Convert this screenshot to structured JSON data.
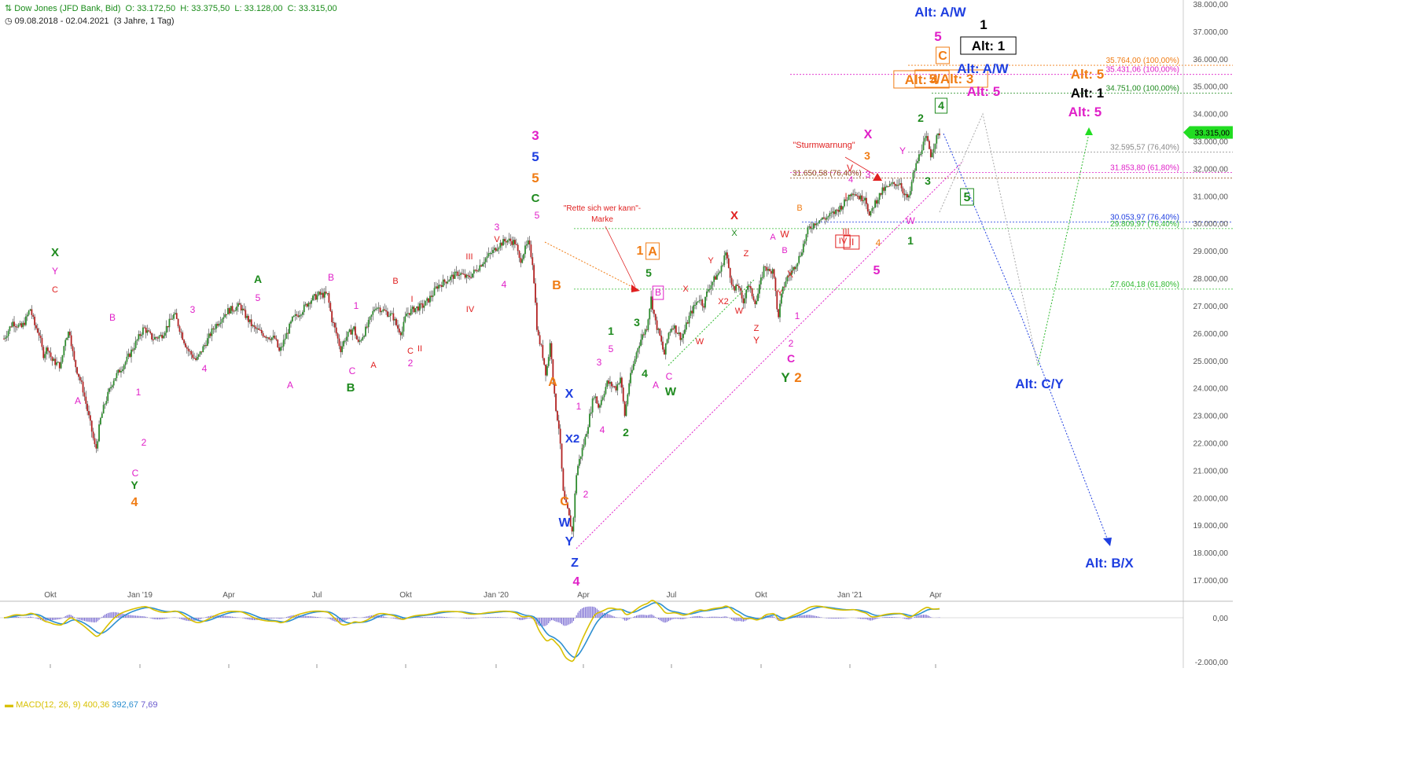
{
  "header": {
    "instrument": "Dow Jones (JFD Bank, Bid)",
    "open": "O: 33.172,50",
    "high": "H: 33.375,50",
    "low": "L: 33.128,00",
    "close": "C: 33.315,00",
    "range": "09.08.2018 - 02.04.2021",
    "period": "(3 Jahre, 1 Tag)"
  },
  "current_price": "33.315,00",
  "macd": {
    "label": "MACD(12, 26, 9)",
    "v1": "400,36",
    "v2": "392,67",
    "v3": "7,69"
  },
  "colors": {
    "up": "#2e8b2e",
    "down": "#b22222",
    "magenta": "#e020c8",
    "orange": "#f07c14",
    "green": "#1e8a1e",
    "blue": "#1f3fe0",
    "black": "#000000",
    "red": "#e02020",
    "macd_line": "#d8c000",
    "signal_line": "#2d8fd0",
    "histogram": "#6a5acd"
  },
  "chart_data": {
    "type": "candlestick",
    "x_tick_labels": [
      "Okt",
      "Jan '19",
      "Apr",
      "Jul",
      "Okt",
      "Jan '20",
      "Apr",
      "Jul",
      "Okt",
      "Jan '21",
      "Apr"
    ],
    "y_tick_labels": [
      "38.000,00",
      "37.000,00",
      "36.000,00",
      "35.000,00",
      "34.000,00",
      "33.000,00",
      "32.000,00",
      "31.000,00",
      "30.000,00",
      "29.000,00",
      "28.000,00",
      "27.000,00",
      "26.000,00",
      "25.000,00",
      "24.000,00",
      "23.000,00",
      "22.000,00",
      "21.000,00",
      "20.000,00",
      "19.000,00",
      "18.000,00",
      "17.000,00"
    ],
    "y_range": [
      16500,
      38000
    ],
    "macd_tick_labels": [
      "0,00",
      "-2.000,00"
    ],
    "price_path": [
      [
        0,
        25800
      ],
      [
        2,
        26400
      ],
      [
        4,
        26200
      ],
      [
        5,
        26500
      ],
      [
        6,
        26900
      ],
      [
        7,
        26300
      ],
      [
        8,
        26000
      ],
      [
        9,
        25200
      ],
      [
        10,
        25500
      ],
      [
        11,
        25000
      ],
      [
        13,
        24800
      ],
      [
        14,
        25800
      ],
      [
        15,
        26100
      ],
      [
        16,
        25000
      ],
      [
        17,
        24500
      ],
      [
        18,
        24000
      ],
      [
        20,
        22500
      ],
      [
        21,
        21700
      ],
      [
        22,
        22800
      ],
      [
        23,
        23400
      ],
      [
        25,
        24300
      ],
      [
        28,
        25000
      ],
      [
        32,
        26200
      ],
      [
        34,
        25800
      ],
      [
        36,
        25900
      ],
      [
        39,
        26700
      ],
      [
        41,
        25800
      ],
      [
        42,
        25400
      ],
      [
        44,
        25000
      ],
      [
        46,
        25600
      ],
      [
        48,
        26200
      ],
      [
        51,
        26800
      ],
      [
        54,
        27000
      ],
      [
        55,
        26700
      ],
      [
        57,
        26200
      ],
      [
        60,
        25900
      ],
      [
        62,
        25800
      ],
      [
        63,
        25300
      ],
      [
        64,
        25700
      ],
      [
        66,
        26500
      ],
      [
        68,
        26800
      ],
      [
        70,
        27200
      ],
      [
        72,
        27400
      ],
      [
        74,
        27400
      ],
      [
        75,
        26500
      ],
      [
        76,
        26000
      ],
      [
        77,
        25400
      ],
      [
        78,
        25800
      ],
      [
        80,
        26200
      ],
      [
        81,
        25600
      ],
      [
        83,
        26200
      ],
      [
        85,
        27000
      ],
      [
        86,
        26900
      ],
      [
        87,
        26800
      ],
      [
        89,
        26600
      ],
      [
        90,
        26200
      ],
      [
        91,
        26000
      ],
      [
        92,
        26700
      ],
      [
        94,
        26900
      ],
      [
        96,
        27000
      ],
      [
        98,
        27400
      ],
      [
        99,
        27700
      ],
      [
        101,
        27900
      ],
      [
        104,
        28200
      ],
      [
        106,
        28000
      ],
      [
        108,
        28300
      ],
      [
        110,
        28700
      ],
      [
        112,
        29000
      ],
      [
        113,
        29200
      ],
      [
        115,
        29400
      ],
      [
        117,
        29300
      ],
      [
        118,
        28600
      ],
      [
        119,
        29000
      ],
      [
        120,
        29300
      ],
      [
        121,
        28500
      ],
      [
        122,
        26000
      ],
      [
        123,
        25400
      ],
      [
        124,
        24500
      ],
      [
        125,
        25700
      ],
      [
        126,
        23500
      ],
      [
        127,
        22500
      ],
      [
        128,
        20000
      ],
      [
        129,
        19500
      ],
      [
        130,
        18700
      ],
      [
        131,
        21000
      ],
      [
        132,
        21600
      ],
      [
        133,
        22200
      ],
      [
        134,
        23000
      ],
      [
        135,
        23800
      ],
      [
        136,
        23300
      ],
      [
        138,
        24200
      ],
      [
        140,
        24000
      ],
      [
        141,
        24400
      ],
      [
        142,
        23000
      ],
      [
        143,
        24200
      ],
      [
        145,
        25500
      ],
      [
        146,
        25900
      ],
      [
        147,
        26200
      ],
      [
        148,
        27300
      ],
      [
        149,
        26400
      ],
      [
        150,
        25900
      ],
      [
        151,
        25200
      ],
      [
        152,
        26000
      ],
      [
        153,
        26300
      ],
      [
        155,
        25800
      ],
      [
        157,
        26700
      ],
      [
        159,
        27300
      ],
      [
        160,
        27000
      ],
      [
        161,
        27600
      ],
      [
        163,
        28100
      ],
      [
        164,
        28300
      ],
      [
        165,
        29000
      ],
      [
        166,
        28200
      ],
      [
        167,
        27500
      ],
      [
        168,
        27800
      ],
      [
        169,
        27000
      ],
      [
        170,
        27800
      ],
      [
        172,
        27100
      ],
      [
        174,
        28500
      ],
      [
        175,
        28200
      ],
      [
        176,
        28400
      ],
      [
        177,
        26500
      ],
      [
        178,
        27500
      ],
      [
        179,
        28000
      ],
      [
        180,
        28200
      ],
      [
        182,
        28800
      ],
      [
        184,
        29800
      ],
      [
        186,
        30100
      ],
      [
        188,
        30200
      ],
      [
        190,
        30400
      ],
      [
        192,
        30700
      ],
      [
        194,
        31200
      ],
      [
        196,
        30900
      ],
      [
        197,
        31000
      ],
      [
        198,
        30200
      ],
      [
        199,
        30700
      ],
      [
        201,
        31200
      ],
      [
        203,
        31400
      ],
      [
        205,
        31500
      ],
      [
        206,
        31000
      ],
      [
        207,
        30900
      ],
      [
        208,
        31800
      ],
      [
        209,
        32300
      ],
      [
        210,
        32800
      ],
      [
        211,
        33100
      ],
      [
        212,
        32500
      ],
      [
        213,
        33000
      ],
      [
        214,
        33300
      ]
    ],
    "fib_levels": [
      {
        "label": "35.764,00 (100,00%)",
        "value": 35764,
        "color": "#f07c14"
      },
      {
        "label": "35.431,06 (100,00%)",
        "value": 35431,
        "color": "#e020c8"
      },
      {
        "label": "34.751,00 (100,00%)",
        "value": 34751,
        "color": "#1e8a1e"
      },
      {
        "label": "32.595,57 (76,40%)",
        "value": 32596,
        "color": "#888888"
      },
      {
        "label": "31.853,80 (61,80%)",
        "value": 31854,
        "color": "#e020c8"
      },
      {
        "label": "31.650,58 (76,40%)",
        "value": 31651,
        "color": "#8b4513"
      },
      {
        "label": "30.053,97 (76,40%)",
        "value": 30054,
        "color": "#1f3fe0"
      },
      {
        "label": "29.809,97 (76,40%)",
        "value": 29810,
        "color": "#2fb92f"
      },
      {
        "label": "27.604,18 (61,80%)",
        "value": 27604,
        "color": "#2fb92f"
      }
    ]
  },
  "annotations": {
    "rette_sich": "\"Rette sich wer kann\"-",
    "marke": "Marke",
    "sturmwarnung": "\"Sturmwarnung\"",
    "wave_labels": [
      {
        "t": "X",
        "c": "green"
      },
      {
        "t": "Y",
        "c": "magenta"
      },
      {
        "t": "C",
        "c": "red"
      },
      {
        "t": "B",
        "c": "magenta"
      },
      {
        "t": "A",
        "c": "magenta"
      },
      {
        "t": "1",
        "c": "magenta"
      },
      {
        "t": "2",
        "c": "magenta"
      },
      {
        "t": "C",
        "c": "magenta"
      },
      {
        "t": "Y",
        "c": "green"
      },
      {
        "t": "4",
        "c": "orange"
      },
      {
        "t": "3",
        "c": "magenta"
      },
      {
        "t": "4",
        "c": "magenta"
      },
      {
        "t": "A",
        "c": "green"
      },
      {
        "t": "5",
        "c": "magenta"
      },
      {
        "t": "A",
        "c": "magenta"
      },
      {
        "t": "B",
        "c": "magenta"
      },
      {
        "t": "1",
        "c": "magenta"
      },
      {
        "t": "C",
        "c": "magenta"
      },
      {
        "t": "B",
        "c": "green"
      },
      {
        "t": "A",
        "c": "red"
      },
      {
        "t": "B",
        "c": "red"
      },
      {
        "t": "I",
        "c": "red"
      },
      {
        "t": "C",
        "c": "red"
      },
      {
        "t": "II",
        "c": "red"
      },
      {
        "t": "2",
        "c": "magenta"
      },
      {
        "t": "III",
        "c": "red"
      },
      {
        "t": "IV",
        "c": "red"
      },
      {
        "t": "3",
        "c": "magenta"
      },
      {
        "t": "V",
        "c": "red"
      },
      {
        "t": "4",
        "c": "magenta"
      },
      {
        "t": "3",
        "c": "magenta"
      },
      {
        "t": "5",
        "c": "blue"
      },
      {
        "t": "5",
        "c": "orange"
      },
      {
        "t": "C",
        "c": "green"
      },
      {
        "t": "5",
        "c": "magenta"
      },
      {
        "t": "B",
        "c": "orange"
      },
      {
        "t": "A",
        "c": "orange"
      },
      {
        "t": "X",
        "c": "blue"
      },
      {
        "t": "1",
        "c": "magenta"
      },
      {
        "t": "X2",
        "c": "blue"
      },
      {
        "t": "C",
        "c": "orange"
      },
      {
        "t": "2",
        "c": "magenta"
      },
      {
        "t": "W",
        "c": "blue"
      },
      {
        "t": "Y",
        "c": "blue"
      },
      {
        "t": "Z",
        "c": "blue"
      },
      {
        "t": "4",
        "c": "magenta"
      },
      {
        "t": "3",
        "c": "magenta"
      },
      {
        "t": "4",
        "c": "magenta"
      },
      {
        "t": "1",
        "c": "green"
      },
      {
        "t": "5",
        "c": "magenta"
      },
      {
        "t": "2",
        "c": "green"
      },
      {
        "t": "3",
        "c": "green"
      },
      {
        "t": "4",
        "c": "green"
      },
      {
        "t": "5",
        "c": "green"
      },
      {
        "t": "1",
        "c": "orange"
      },
      {
        "t": "A",
        "c": "orange"
      },
      {
        "t": "B",
        "c": "magenta"
      },
      {
        "t": "A",
        "c": "magenta"
      },
      {
        "t": "C",
        "c": "magenta"
      },
      {
        "t": "W",
        "c": "green"
      },
      {
        "t": "X",
        "c": "red"
      },
      {
        "t": "W",
        "c": "red"
      },
      {
        "t": "Y",
        "c": "red"
      },
      {
        "t": "X2",
        "c": "red"
      },
      {
        "t": "W",
        "c": "red"
      },
      {
        "t": "Z",
        "c": "red"
      },
      {
        "t": "X",
        "c": "red"
      },
      {
        "t": "X",
        "c": "green"
      },
      {
        "t": "Z",
        "c": "red"
      },
      {
        "t": "Y",
        "c": "red"
      },
      {
        "t": "A",
        "c": "magenta"
      },
      {
        "t": "W",
        "c": "red"
      },
      {
        "t": "B",
        "c": "magenta"
      },
      {
        "t": "Y",
        "c": "red"
      },
      {
        "t": "X",
        "c": "red"
      },
      {
        "t": "1",
        "c": "magenta"
      },
      {
        "t": "2",
        "c": "magenta"
      },
      {
        "t": "C",
        "c": "magenta"
      },
      {
        "t": "Y",
        "c": "green"
      },
      {
        "t": "2",
        "c": "orange"
      },
      {
        "t": "B",
        "c": "orange"
      },
      {
        "t": "I",
        "c": "red"
      },
      {
        "t": "III",
        "c": "red"
      },
      {
        "t": "IV",
        "c": "red"
      },
      {
        "t": "II",
        "c": "red"
      },
      {
        "t": "4",
        "c": "magenta"
      },
      {
        "t": "V",
        "c": "red"
      },
      {
        "t": "3",
        "c": "magenta"
      },
      {
        "t": "5",
        "c": "magenta"
      },
      {
        "t": "4",
        "c": "orange"
      },
      {
        "t": "W",
        "c": "magenta"
      },
      {
        "t": "Y",
        "c": "magenta"
      },
      {
        "t": "X",
        "c": "magenta"
      },
      {
        "t": "3",
        "c": "orange"
      },
      {
        "t": "1",
        "c": "green"
      },
      {
        "t": "2",
        "c": "green"
      },
      {
        "t": "3",
        "c": "green"
      },
      {
        "t": "4",
        "c": "green"
      },
      {
        "t": "5",
        "c": "green"
      },
      {
        "t": "Alt: 4",
        "c": "orange"
      },
      {
        "t": "5/Alt: 3",
        "c": "orange"
      },
      {
        "t": "C",
        "c": "orange"
      },
      {
        "t": "5",
        "c": "magenta"
      },
      {
        "t": "Alt: A/W",
        "c": "blue"
      },
      {
        "t": "1",
        "c": "black"
      },
      {
        "t": "Alt: 1",
        "c": "black"
      },
      {
        "t": "Alt: A/W",
        "c": "blue"
      },
      {
        "t": "Alt: 5",
        "c": "magenta"
      },
      {
        "t": "Alt: 5",
        "c": "orange"
      },
      {
        "t": "Alt: 1",
        "c": "black"
      },
      {
        "t": "Alt: 5",
        "c": "magenta"
      },
      {
        "t": "Alt: C/Y",
        "c": "blue"
      },
      {
        "t": "Alt: B/X",
        "c": "blue"
      },
      {
        "t": "2",
        "c": "black"
      }
    ]
  }
}
